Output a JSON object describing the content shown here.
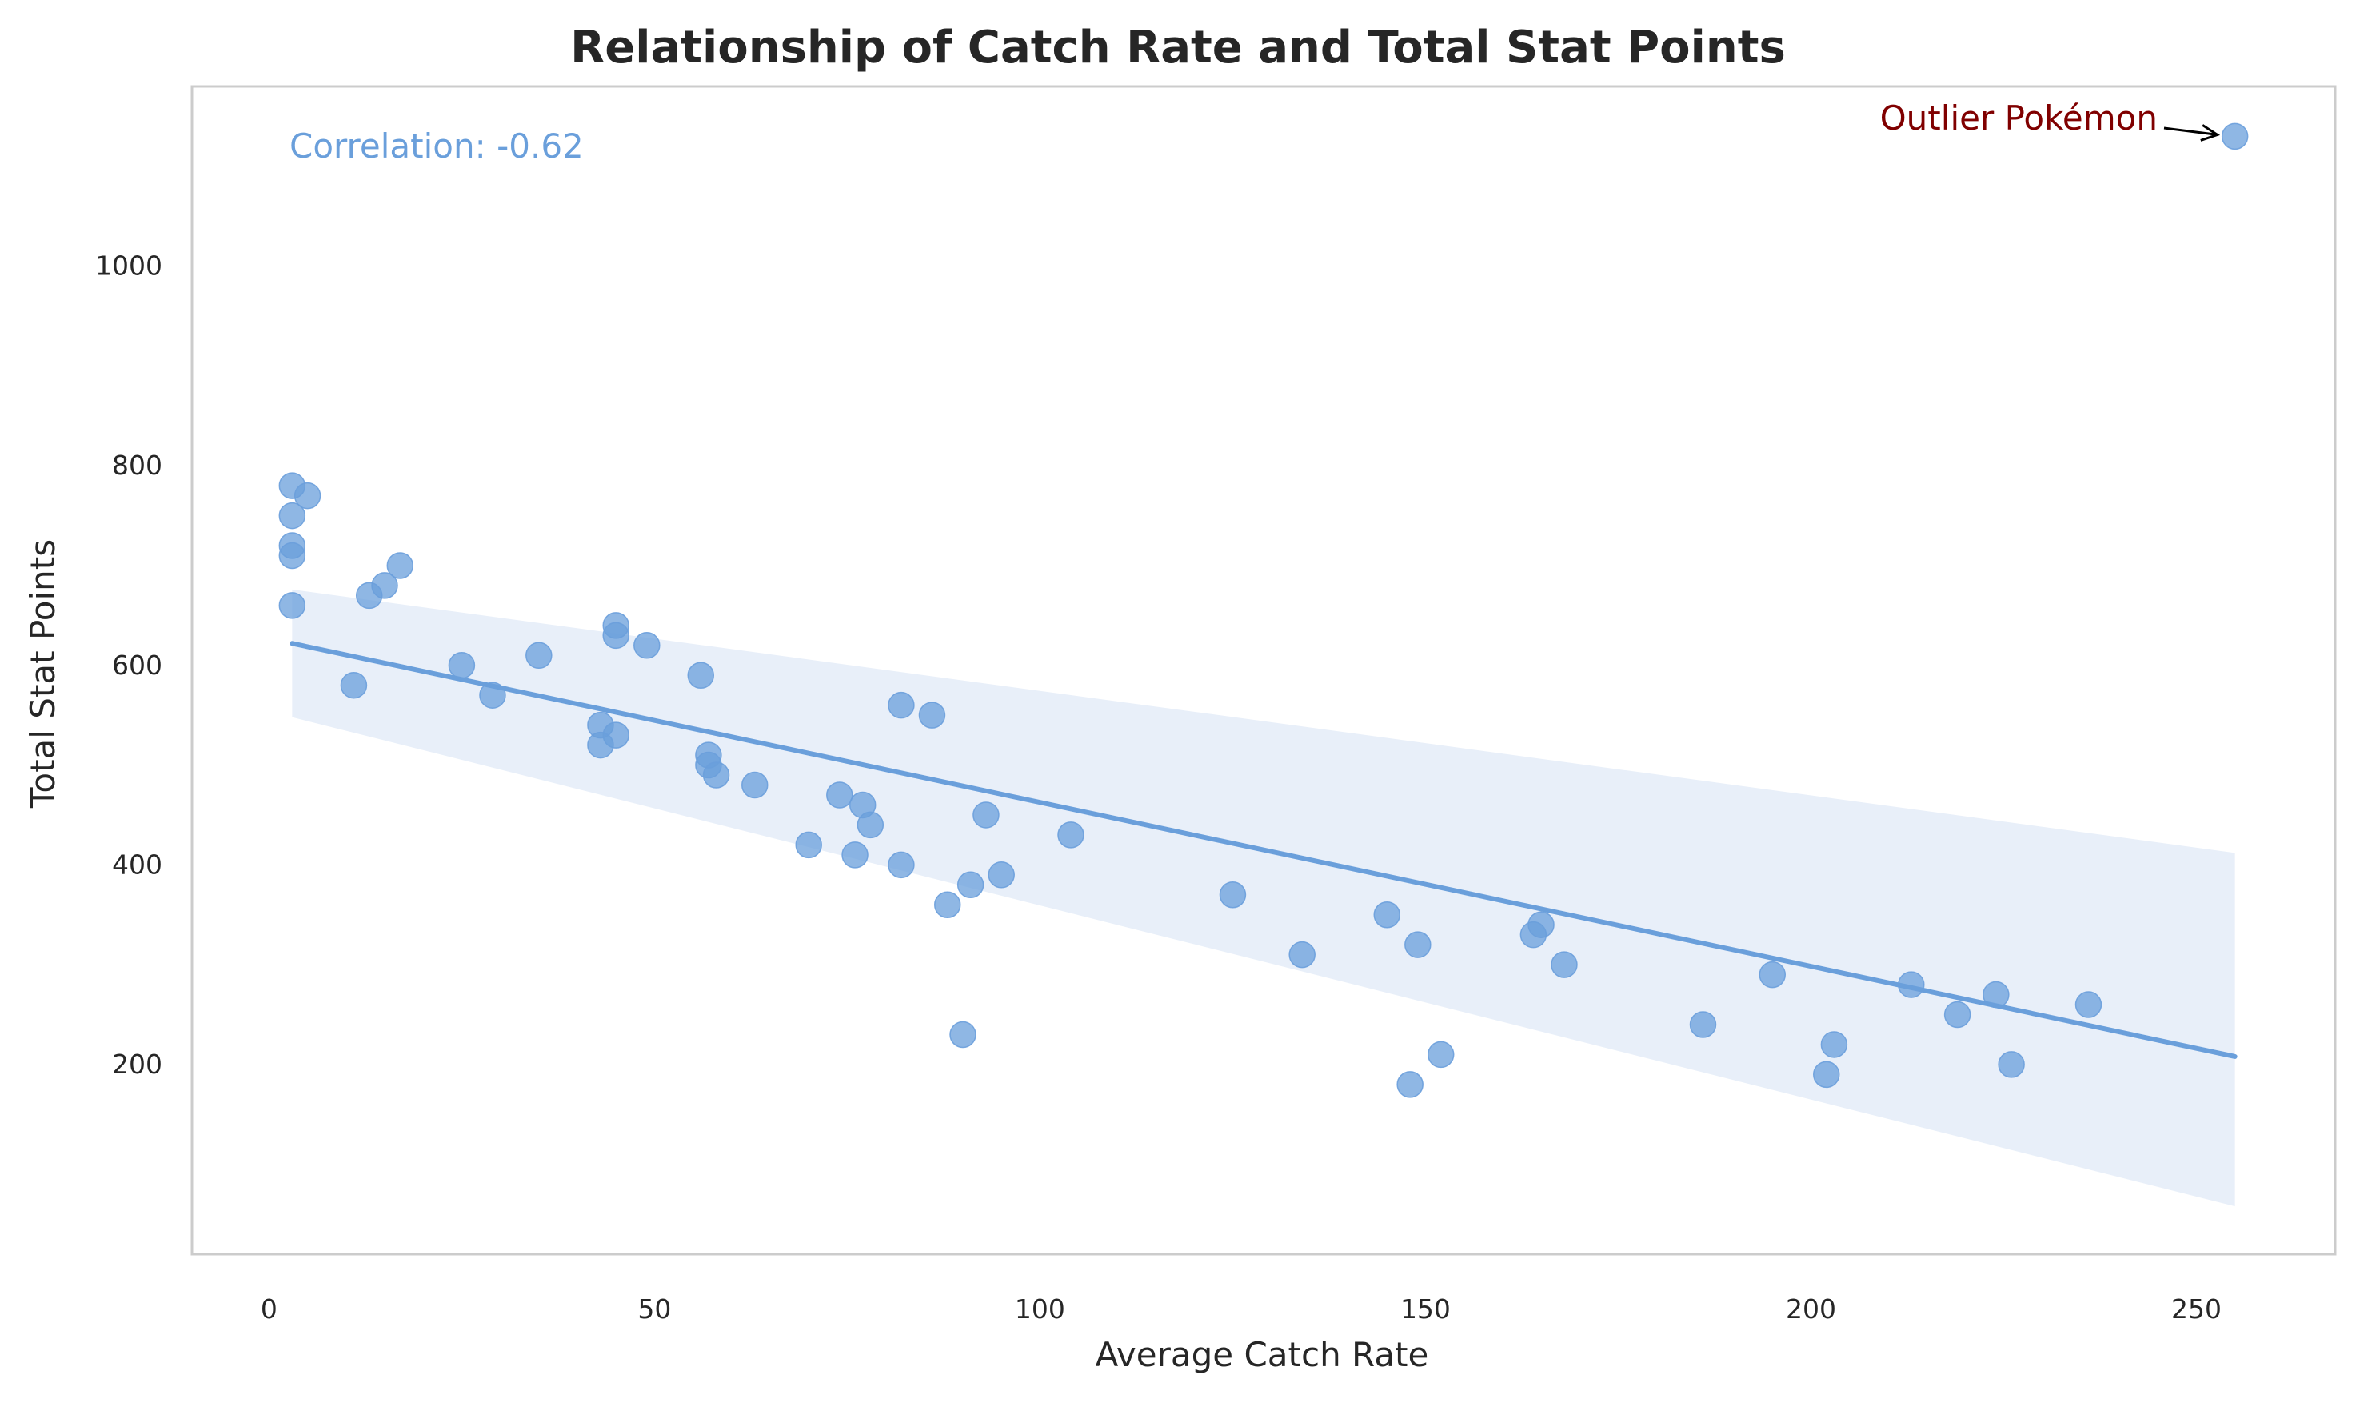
{
  "chart_data": {
    "type": "scatter",
    "title": "Relationship of Catch Rate and Total Stat Points",
    "xlabel": "Average Catch Rate",
    "ylabel": "Total Stat Points",
    "xlim": [
      -10,
      268
    ],
    "ylim": [
      10,
      1180
    ],
    "xticks": [
      0,
      50,
      100,
      150,
      200,
      250
    ],
    "yticks": [
      200,
      400,
      600,
      800,
      1000
    ],
    "grid": false,
    "point_color": "#6a9fdb",
    "line_color": "#6a9fdb",
    "band_color": "#e8eff9",
    "points": [
      {
        "x": 3,
        "y": 780
      },
      {
        "x": 5,
        "y": 770
      },
      {
        "x": 3,
        "y": 750
      },
      {
        "x": 3,
        "y": 720
      },
      {
        "x": 3,
        "y": 710
      },
      {
        "x": 3,
        "y": 660
      },
      {
        "x": 17,
        "y": 700
      },
      {
        "x": 15,
        "y": 680
      },
      {
        "x": 13,
        "y": 670
      },
      {
        "x": 11,
        "y": 580
      },
      {
        "x": 25,
        "y": 600
      },
      {
        "x": 29,
        "y": 570
      },
      {
        "x": 35,
        "y": 610
      },
      {
        "x": 45,
        "y": 640
      },
      {
        "x": 45,
        "y": 630
      },
      {
        "x": 49,
        "y": 620
      },
      {
        "x": 43,
        "y": 540
      },
      {
        "x": 45,
        "y": 530
      },
      {
        "x": 43,
        "y": 520
      },
      {
        "x": 56,
        "y": 590
      },
      {
        "x": 57,
        "y": 510
      },
      {
        "x": 57,
        "y": 500
      },
      {
        "x": 58,
        "y": 490
      },
      {
        "x": 63,
        "y": 480
      },
      {
        "x": 82,
        "y": 560
      },
      {
        "x": 86,
        "y": 550
      },
      {
        "x": 74,
        "y": 470
      },
      {
        "x": 77,
        "y": 460
      },
      {
        "x": 78,
        "y": 440
      },
      {
        "x": 93,
        "y": 450
      },
      {
        "x": 70,
        "y": 420
      },
      {
        "x": 76,
        "y": 410
      },
      {
        "x": 82,
        "y": 400
      },
      {
        "x": 104,
        "y": 430
      },
      {
        "x": 95,
        "y": 390
      },
      {
        "x": 91,
        "y": 380
      },
      {
        "x": 88,
        "y": 360
      },
      {
        "x": 90,
        "y": 230
      },
      {
        "x": 125,
        "y": 370
      },
      {
        "x": 134,
        "y": 310
      },
      {
        "x": 145,
        "y": 350
      },
      {
        "x": 149,
        "y": 320
      },
      {
        "x": 148,
        "y": 180
      },
      {
        "x": 152,
        "y": 210
      },
      {
        "x": 164,
        "y": 330
      },
      {
        "x": 165,
        "y": 340
      },
      {
        "x": 168,
        "y": 300
      },
      {
        "x": 186,
        "y": 240
      },
      {
        "x": 195,
        "y": 290
      },
      {
        "x": 203,
        "y": 220
      },
      {
        "x": 202,
        "y": 190
      },
      {
        "x": 213,
        "y": 280
      },
      {
        "x": 219,
        "y": 250
      },
      {
        "x": 224,
        "y": 270
      },
      {
        "x": 226,
        "y": 200
      },
      {
        "x": 236,
        "y": 260
      },
      {
        "x": 255,
        "y": 1130
      }
    ],
    "regression": {
      "x": [
        3,
        255
      ],
      "y": [
        622,
        208
      ],
      "ci_lower": [
        548,
        58
      ],
      "ci_upper": [
        676,
        412
      ]
    },
    "annotations": [
      {
        "text": "Correlation: -0.62",
        "color": "#6a9fdb"
      },
      {
        "text": "Outlier Pokémon",
        "color": "#800000",
        "target_x": 255,
        "target_y": 1130
      }
    ]
  }
}
